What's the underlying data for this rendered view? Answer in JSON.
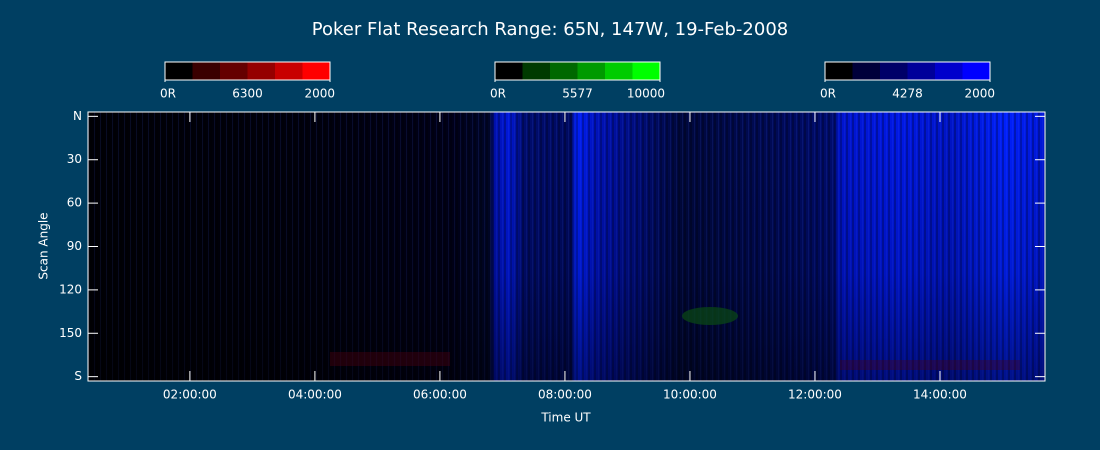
{
  "chart_data": {
    "type": "keogram",
    "title": "Poker Flat Research Range: 65N, 147W, 19-Feb-2008",
    "xlabel": "Time UT",
    "ylabel": "Scan Angle",
    "xlim": [
      0.37,
      15.68
    ],
    "xticks": [
      {
        "value": 2,
        "label": "02:00:00"
      },
      {
        "value": 4,
        "label": "04:00:00"
      },
      {
        "value": 6,
        "label": "06:00:00"
      },
      {
        "value": 8,
        "label": "08:00:00"
      },
      {
        "value": 10,
        "label": "10:00:00"
      },
      {
        "value": 12,
        "label": "12:00:00"
      },
      {
        "value": 14,
        "label": "14:00:00"
      }
    ],
    "ylim": [
      -3,
      183
    ],
    "yticks": [
      {
        "value": 0,
        "label": "N"
      },
      30,
      60,
      90,
      120,
      150,
      {
        "value": 180,
        "label": "S"
      }
    ],
    "colorbars": [
      {
        "label": "6300",
        "min": {
          "value": 0,
          "label": "0R"
        },
        "max": 2000,
        "colors": [
          "#000000",
          "#3a0000",
          "#650000",
          "#950000",
          "#c80000",
          "#ff0000"
        ]
      },
      {
        "label": "5577",
        "min": {
          "value": 0,
          "label": "0R"
        },
        "max": 10000,
        "colors": [
          "#000000",
          "#003a00",
          "#006800",
          "#009a00",
          "#00cc00",
          "#00ff00"
        ]
      },
      {
        "label": "4278",
        "min": {
          "value": 0,
          "label": "0R"
        },
        "max": 2000,
        "colors": [
          "#000000",
          "#00003a",
          "#000068",
          "#00009a",
          "#0000cc",
          "#0000ff"
        ]
      }
    ]
  }
}
